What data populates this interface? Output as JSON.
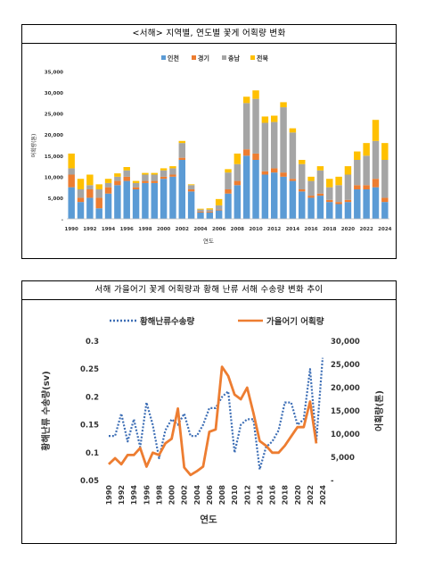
{
  "colors": {
    "incheon": "#5b9bd5",
    "gyeonggi": "#ed7d31",
    "chungnam": "#a5a5a5",
    "jeonbuk": "#ffc000",
    "yellow_sea_current": "#3d6eb5",
    "gillnet_catch": "#ed7d31"
  },
  "chart_data": [
    {
      "type": "bar",
      "stacked": true,
      "title": "<서해> 지역별, 연도별 꽃게 어획량 변화",
      "xlabel": "연도",
      "ylabel": "어획량(톤)",
      "ylim": [
        0,
        35000
      ],
      "yticks": [
        "-",
        "5,000",
        "10,000",
        "15,000",
        "20,000",
        "25,000",
        "30,000",
        "35,000"
      ],
      "grid": false,
      "legend_position": "top",
      "categories": [
        "1990",
        "1991",
        "1992",
        "1993",
        "1994",
        "1995",
        "1996",
        "1997",
        "1998",
        "1999",
        "2000",
        "2001",
        "2002",
        "2003",
        "2004",
        "2005",
        "2006",
        "2007",
        "2008",
        "2009",
        "2010",
        "2011",
        "2012",
        "2013",
        "2014",
        "2015",
        "2016",
        "2017",
        "2018",
        "2019",
        "2020",
        "2021",
        "2022",
        "2023",
        "2024"
      ],
      "tick_labels": [
        "1990",
        "1992",
        "1994",
        "1996",
        "1998",
        "2000",
        "2002",
        "2004",
        "2006",
        "2008",
        "2010",
        "2012",
        "2014",
        "2016",
        "2018",
        "2020",
        "2022",
        "2024"
      ],
      "series": [
        {
          "name": "인천",
          "values": [
            7500,
            4000,
            5000,
            2500,
            6000,
            8000,
            9000,
            7000,
            8500,
            8500,
            9500,
            10000,
            14000,
            6500,
            1500,
            1500,
            2000,
            6000,
            8000,
            15000,
            14000,
            10500,
            11000,
            10000,
            9000,
            6500,
            5000,
            5500,
            4000,
            3500,
            4000,
            7000,
            7000,
            7500,
            4000
          ]
        },
        {
          "name": "경기",
          "values": [
            3000,
            1000,
            2000,
            2500,
            1500,
            1000,
            1000,
            500,
            500,
            500,
            500,
            500,
            500,
            500,
            200,
            200,
            200,
            1000,
            1000,
            1500,
            1500,
            800,
            1000,
            1000,
            500,
            500,
            500,
            500,
            500,
            500,
            500,
            1000,
            1000,
            2000,
            1000
          ]
        },
        {
          "name": "충남",
          "values": [
            1500,
            2000,
            1000,
            2000,
            1000,
            1000,
            1500,
            1000,
            1500,
            1500,
            1500,
            1500,
            3500,
            1000,
            500,
            500,
            1000,
            4000,
            4000,
            11000,
            13000,
            11500,
            11000,
            15500,
            11000,
            6000,
            3500,
            5500,
            3000,
            4000,
            6000,
            6000,
            7000,
            9000,
            9000
          ]
        },
        {
          "name": "전북",
          "values": [
            3500,
            2500,
            2500,
            1200,
            1000,
            800,
            800,
            500,
            400,
            400,
            500,
            500,
            500,
            200,
            200,
            300,
            1500,
            800,
            2500,
            1500,
            2000,
            1500,
            1500,
            1200,
            1000,
            1000,
            1000,
            1000,
            2000,
            2000,
            2000,
            2000,
            3000,
            5000,
            4000
          ]
        }
      ]
    },
    {
      "type": "line",
      "title": "서해 가을어기 꽃게 어획량과 황해 난류 서해 수송량 변화 추이",
      "xlabel": "연도",
      "ylabel_left": "황해난류 수송량(sv)",
      "ylabel_right": "어획량(톤)",
      "ylim_left": [
        0.05,
        0.3
      ],
      "ylim_right": [
        0,
        30000
      ],
      "yticks_left": [
        "0.05",
        "0.1",
        "0.15",
        "0.2",
        "0.25",
        "0.3"
      ],
      "yticks_right": [
        "-",
        "5,000",
        "10,000",
        "15,000",
        "20,000",
        "25,000",
        "30,000"
      ],
      "grid": false,
      "legend_position": "top",
      "x": [
        1990,
        1991,
        1992,
        1993,
        1994,
        1995,
        1996,
        1997,
        1998,
        1999,
        2000,
        2001,
        2002,
        2003,
        2004,
        2005,
        2006,
        2007,
        2008,
        2009,
        2010,
        2011,
        2012,
        2013,
        2014,
        2015,
        2016,
        2017,
        2018,
        2019,
        2020,
        2021,
        2022,
        2023,
        2024
      ],
      "tick_labels": [
        "1990",
        "1992",
        "1994",
        "1996",
        "1998",
        "2000",
        "2002",
        "2004",
        "2006",
        "2008",
        "2010",
        "2012",
        "2014",
        "2016",
        "2018",
        "2020",
        "2022",
        "2024"
      ],
      "series": [
        {
          "name": "황해난류수송량",
          "axis": "left",
          "style": "dotted",
          "values": [
            0.13,
            0.13,
            0.17,
            0.12,
            0.16,
            0.11,
            0.19,
            0.15,
            0.09,
            0.14,
            0.16,
            0.15,
            0.17,
            0.13,
            0.13,
            0.15,
            0.18,
            0.18,
            0.2,
            0.21,
            0.1,
            0.15,
            0.16,
            0.16,
            0.07,
            0.11,
            0.12,
            0.14,
            0.19,
            0.19,
            0.15,
            0.16,
            0.25,
            0.12,
            0.27
          ]
        },
        {
          "name": "가을어기 어획량",
          "axis": "right",
          "style": "solid",
          "values": [
            3500,
            4800,
            3500,
            5500,
            5500,
            7000,
            3000,
            6000,
            5500,
            8000,
            9000,
            15500,
            2800,
            1200,
            2000,
            3000,
            10500,
            11000,
            24500,
            22500,
            18500,
            17500,
            20000,
            14500,
            8500,
            7500,
            6000,
            6000,
            7500,
            9500,
            11500,
            11500,
            17000,
            8000,
            null
          ]
        }
      ]
    }
  ]
}
